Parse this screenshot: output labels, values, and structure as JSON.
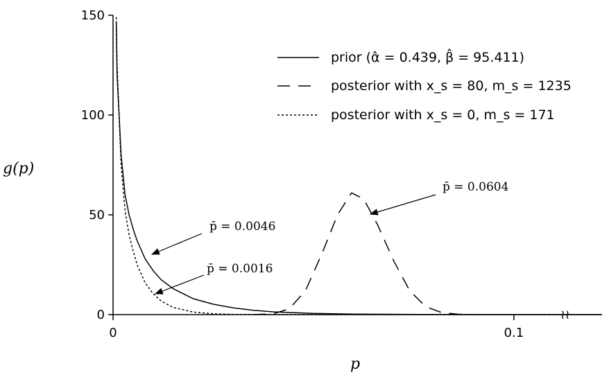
{
  "chart_data": {
    "type": "line",
    "xlabel": "p",
    "ylabel": "g(p)",
    "xlim": [
      0,
      0.122
    ],
    "ylim": [
      0,
      150
    ],
    "x_ticks": [
      {
        "value": 0,
        "label": "0"
      },
      {
        "value": 0.1,
        "label": "0.1"
      }
    ],
    "y_ticks": [
      {
        "value": 0,
        "label": "0"
      },
      {
        "value": 50,
        "label": "50"
      },
      {
        "value": 100,
        "label": "100"
      },
      {
        "value": 150,
        "label": "150"
      }
    ],
    "axis_break_symbol": "≀≀",
    "grid": false,
    "legend_position": "top-right",
    "series": [
      {
        "name": "prior (α̂ = 0.439, β̂ = 95.411)",
        "style": "solid",
        "points": [
          [
            0.0008,
            147
          ],
          [
            0.001,
            120
          ],
          [
            0.002,
            80
          ],
          [
            0.003,
            60
          ],
          [
            0.004,
            50
          ],
          [
            0.005,
            43
          ],
          [
            0.006,
            37
          ],
          [
            0.008,
            28
          ],
          [
            0.01,
            22
          ],
          [
            0.012,
            17.5
          ],
          [
            0.015,
            13
          ],
          [
            0.02,
            8
          ],
          [
            0.025,
            5.2
          ],
          [
            0.03,
            3.4
          ],
          [
            0.035,
            2.2
          ],
          [
            0.04,
            1.4
          ],
          [
            0.05,
            0.6
          ],
          [
            0.06,
            0.25
          ],
          [
            0.08,
            0.05
          ],
          [
            0.1,
            0.01
          ],
          [
            0.122,
            0
          ]
        ]
      },
      {
        "name": "posterior with x_s = 80, m_s = 1235",
        "style": "dashed",
        "points": [
          [
            0.035,
            0
          ],
          [
            0.04,
            0.4
          ],
          [
            0.044,
            3
          ],
          [
            0.048,
            12
          ],
          [
            0.052,
            30
          ],
          [
            0.056,
            50
          ],
          [
            0.0595,
            61
          ],
          [
            0.0625,
            58
          ],
          [
            0.066,
            45
          ],
          [
            0.07,
            27
          ],
          [
            0.074,
            12
          ],
          [
            0.078,
            4
          ],
          [
            0.082,
            1
          ],
          [
            0.086,
            0.2
          ],
          [
            0.09,
            0
          ]
        ]
      },
      {
        "name": "posterior with x_s = 0, m_s = 171",
        "style": "dotted",
        "points": [
          [
            0.0008,
            149
          ],
          [
            0.001,
            125
          ],
          [
            0.002,
            75
          ],
          [
            0.003,
            52
          ],
          [
            0.004,
            40
          ],
          [
            0.005,
            32
          ],
          [
            0.006,
            25
          ],
          [
            0.008,
            16
          ],
          [
            0.01,
            10.5
          ],
          [
            0.012,
            6.8
          ],
          [
            0.015,
            3.6
          ],
          [
            0.02,
            1.3
          ],
          [
            0.025,
            0.4
          ],
          [
            0.03,
            0.1
          ],
          [
            0.04,
            0
          ],
          [
            0.122,
            0
          ]
        ]
      }
    ],
    "annotations": [
      {
        "text": "p̄ = 0.0046",
        "x": 0.04,
        "y": 0.0
      },
      {
        "text": "p̄ = 0.0016",
        "x": 0.05,
        "y": 0.0
      },
      {
        "text": "p̄ = 0.0604",
        "x": 0.0,
        "y": 0.0
      }
    ]
  }
}
